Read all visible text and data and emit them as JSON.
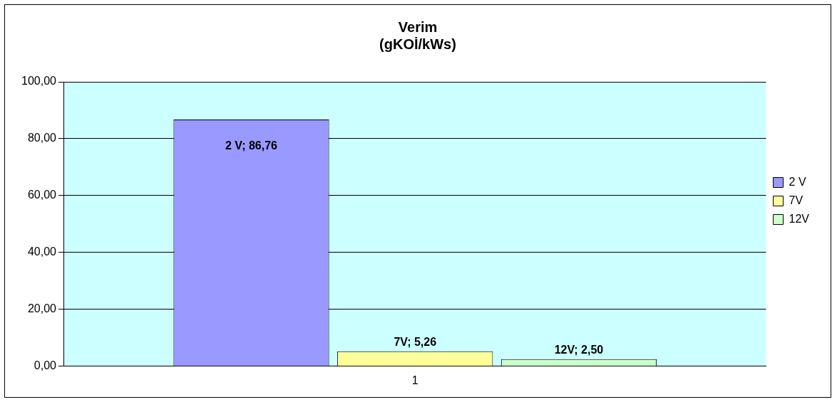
{
  "chart_data": {
    "type": "bar",
    "title": "Verim\n(gKOİ/kWs)",
    "categories": [
      "1"
    ],
    "series": [
      {
        "name": "2 V",
        "color": "#9999ff",
        "values": [
          86.76
        ],
        "value_labels": [
          "2 V; 86,76"
        ]
      },
      {
        "name": "7V",
        "color": "#ffff99",
        "values": [
          5.26
        ],
        "value_labels": [
          "7V; 5,26"
        ]
      },
      {
        "name": "12V",
        "color": "#ccffcc",
        "values": [
          2.5
        ],
        "value_labels": [
          "12V; 2,50"
        ]
      }
    ],
    "ylim": [
      0,
      100
    ],
    "yticks": [
      {
        "value": 0,
        "label": "0,00"
      },
      {
        "value": 20,
        "label": "20,00"
      },
      {
        "value": 40,
        "label": "40,00"
      },
      {
        "value": 60,
        "label": "60,00"
      },
      {
        "value": 80,
        "label": "80,00"
      },
      {
        "value": 100,
        "label": "100,00"
      }
    ],
    "grid": "y",
    "legend": "right"
  }
}
